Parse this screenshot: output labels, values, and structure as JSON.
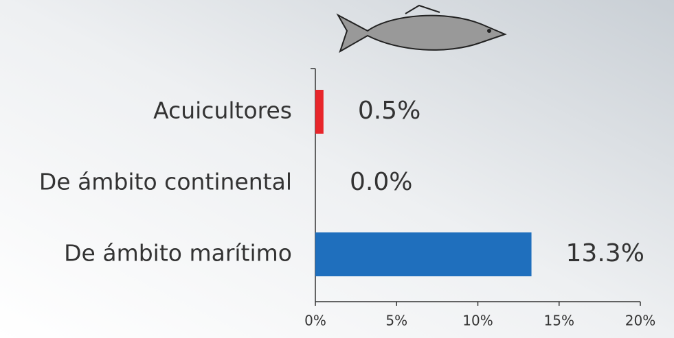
{
  "chart_data": {
    "type": "hbar",
    "categories": [
      "Acuicultores",
      "De ámbito continental",
      "De ámbito marítimo"
    ],
    "values": [
      0.5,
      0.0,
      13.3
    ],
    "value_labels": [
      "0.5%",
      "0.0%",
      "13.3%"
    ],
    "colors": [
      "#e8262b",
      "#1f6fbd",
      "#1f6fbd"
    ],
    "xlim": [
      0,
      20
    ],
    "xticks": [
      {
        "value": 0,
        "label": "0%"
      },
      {
        "value": 5,
        "label": "5%"
      },
      {
        "value": 10,
        "label": "10%"
      },
      {
        "value": 15,
        "label": "15%"
      },
      {
        "value": 20,
        "label": "20%"
      }
    ]
  }
}
